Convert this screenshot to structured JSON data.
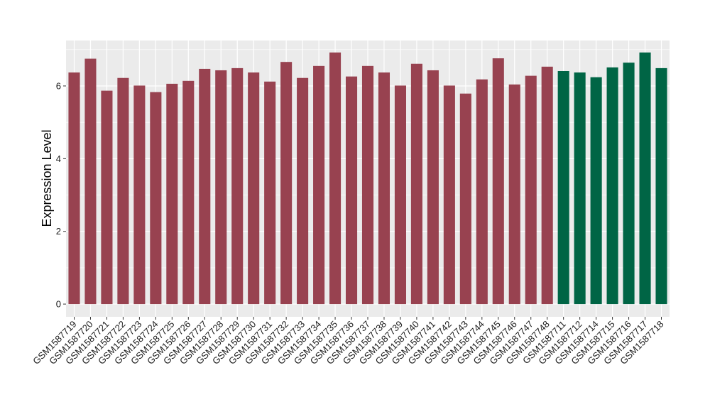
{
  "chart_data": {
    "type": "bar",
    "title": "",
    "xlabel": "",
    "ylabel": "Expression Level",
    "ylim": [
      -0.35,
      7.25
    ],
    "yticks": [
      0,
      2,
      4,
      6
    ],
    "grid": true,
    "legend": "none",
    "colors": {
      "group_a": "#984250",
      "group_b": "#006545",
      "panel": "#ebebeb",
      "grid": "#ffffff"
    },
    "categories": [
      "GSM1587719",
      "GSM1587720",
      "GSM1587721",
      "GSM1587722",
      "GSM1587723",
      "GSM1587724",
      "GSM1587725",
      "GSM1587726",
      "GSM1587727",
      "GSM1587728",
      "GSM1587729",
      "GSM1587730",
      "GSM1587731",
      "GSM1587732",
      "GSM1587733",
      "GSM1587734",
      "GSM1587735",
      "GSM1587736",
      "GSM1587737",
      "GSM1587738",
      "GSM1587739",
      "GSM1587740",
      "GSM1587741",
      "GSM1587742",
      "GSM1587743",
      "GSM1587744",
      "GSM1587745",
      "GSM1587746",
      "GSM1587747",
      "GSM1587748",
      "GSM1587711",
      "GSM1587712",
      "GSM1587714",
      "GSM1587715",
      "GSM1587716",
      "GSM1587717",
      "GSM1587718"
    ],
    "values": [
      6.37,
      6.75,
      5.87,
      6.22,
      6.01,
      5.83,
      6.06,
      6.14,
      6.47,
      6.43,
      6.49,
      6.37,
      6.12,
      6.66,
      6.22,
      6.55,
      6.92,
      6.26,
      6.55,
      6.37,
      6.01,
      6.61,
      6.43,
      6.01,
      5.79,
      6.18,
      6.76,
      6.04,
      6.28,
      6.53,
      6.41,
      6.37,
      6.24,
      6.51,
      6.64,
      6.92,
      6.49
    ],
    "groups": [
      "a",
      "a",
      "a",
      "a",
      "a",
      "a",
      "a",
      "a",
      "a",
      "a",
      "a",
      "a",
      "a",
      "a",
      "a",
      "a",
      "a",
      "a",
      "a",
      "a",
      "a",
      "a",
      "a",
      "a",
      "a",
      "a",
      "a",
      "a",
      "a",
      "a",
      "b",
      "b",
      "b",
      "b",
      "b",
      "b",
      "b"
    ]
  }
}
